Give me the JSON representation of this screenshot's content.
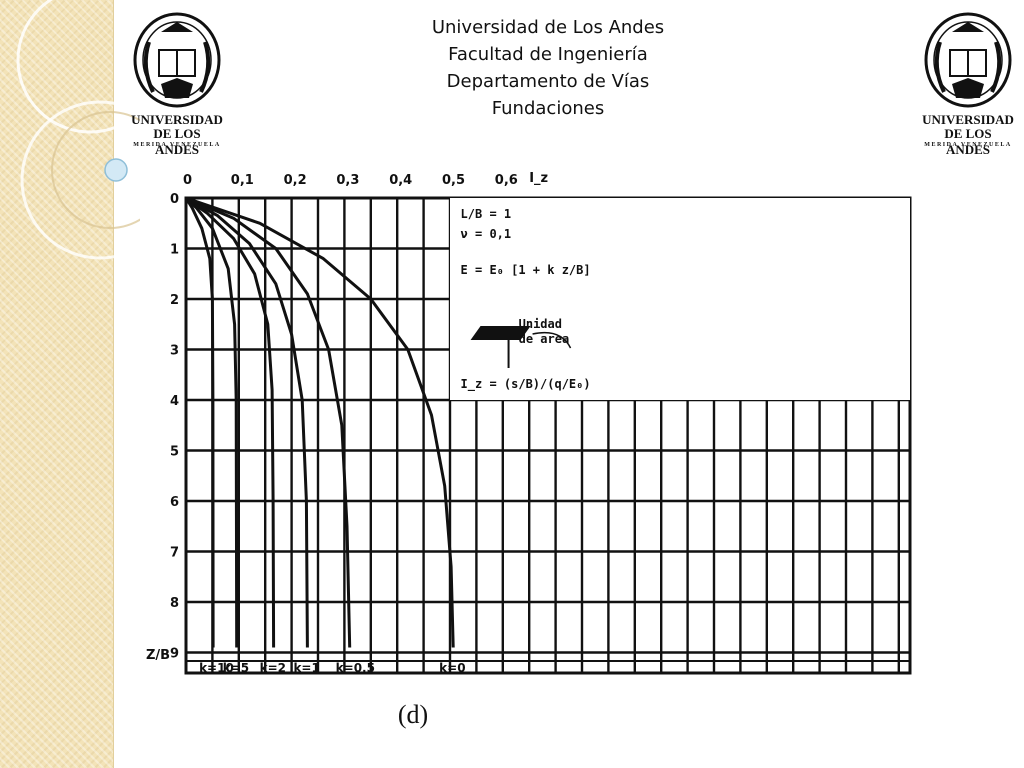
{
  "header": {
    "lines": [
      "Universidad de Los Andes",
      "Facultad de Ingeniería",
      "Departamento de Vías",
      "Fundaciones"
    ]
  },
  "logo": {
    "line1": "UNIVERSIDAD",
    "line2": "DE LOS ANDES",
    "line3": "MERIDA VENEZUELA"
  },
  "caption": "(d)",
  "chart_data": {
    "type": "line",
    "title": "",
    "xlabel": "I_z",
    "ylabel": "Z/B",
    "x_ticks": [
      "0",
      "0,1",
      "0,2",
      "0,3",
      "0,4",
      "0,5",
      "0,6"
    ],
    "y_ticks": [
      "0",
      "1",
      "2",
      "3",
      "4",
      "5",
      "6",
      "7",
      "8",
      "9"
    ],
    "xlim": [
      0,
      0.7
    ],
    "ylim": [
      0,
      9.4
    ],
    "y_inverted": true,
    "grid": true,
    "legend_position": "top-right",
    "legend_lines": [
      "L/B = 1",
      "ν = 0,1",
      "E = E₀ [1 + k z/B]",
      "Unidad",
      "de area",
      "I_z = (s/B)/(q/E₀)"
    ],
    "series": [
      {
        "name": "k=10",
        "x": [
          0,
          0.012,
          0.03,
          0.045,
          0.05,
          0.051,
          0.0513
        ],
        "y": [
          0,
          0.2,
          0.6,
          1.2,
          2.0,
          4.0,
          8.9
        ]
      },
      {
        "name": "k=5",
        "x": [
          0,
          0.02,
          0.05,
          0.08,
          0.092,
          0.095,
          0.096
        ],
        "y": [
          0,
          0.2,
          0.6,
          1.4,
          2.5,
          4.0,
          8.9
        ]
      },
      {
        "name": "k=2",
        "x": [
          0,
          0.04,
          0.09,
          0.13,
          0.155,
          0.163,
          0.165,
          0.166
        ],
        "y": [
          0,
          0.3,
          0.8,
          1.5,
          2.5,
          3.8,
          6.0,
          8.9
        ]
      },
      {
        "name": "k=1",
        "x": [
          0,
          0.06,
          0.12,
          0.17,
          0.2,
          0.22,
          0.228,
          0.23
        ],
        "y": [
          0,
          0.35,
          0.9,
          1.7,
          2.7,
          4.0,
          6.0,
          8.9
        ]
      },
      {
        "name": "k=0,5",
        "x": [
          0,
          0.09,
          0.17,
          0.23,
          0.27,
          0.295,
          0.305,
          0.31
        ],
        "y": [
          0,
          0.4,
          1.0,
          1.9,
          3.0,
          4.5,
          6.5,
          8.9
        ]
      },
      {
        "name": "k=0",
        "x": [
          0,
          0.14,
          0.26,
          0.35,
          0.42,
          0.465,
          0.49,
          0.502,
          0.506
        ],
        "y": [
          0,
          0.5,
          1.2,
          2.0,
          3.0,
          4.3,
          5.7,
          7.3,
          8.9
        ]
      }
    ]
  }
}
